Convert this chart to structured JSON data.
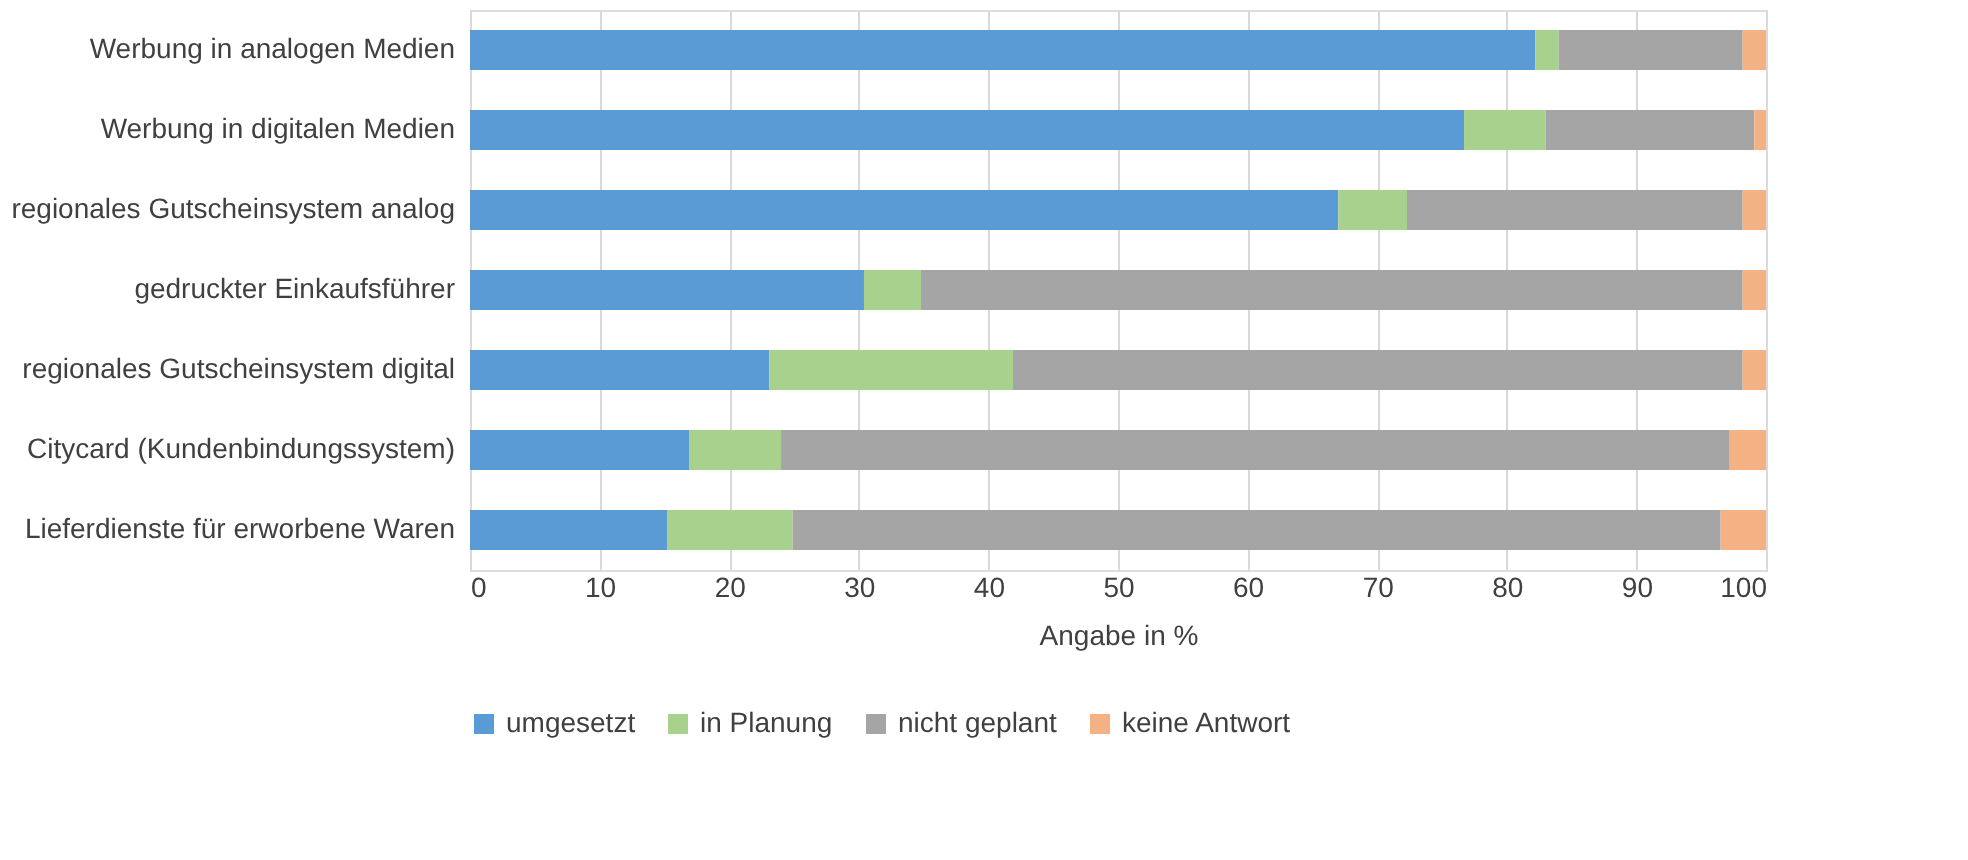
{
  "chart_data": {
    "type": "bar",
    "orientation": "horizontal",
    "stacked": true,
    "xlabel": "Angabe in %",
    "categories": [
      "Werbung in analogen Medien",
      "Werbung in digitalen Medien",
      "regionales Gutscheinsystem analog",
      "gedruckter Einkaufsführer",
      "regionales Gutscheinsystem digital",
      "Citycard (Kundenbindungssystem)",
      "Lieferdienste für erworbene Waren"
    ],
    "series": [
      {
        "name": "umgesetzt",
        "color": "#5b9bd5",
        "values": [
          82.2,
          76.7,
          67.0,
          30.4,
          23.1,
          16.9,
          15.2
        ]
      },
      {
        "name": "in Planung",
        "color": "#a9d18e",
        "values": [
          1.8,
          6.3,
          5.3,
          4.4,
          18.8,
          7.1,
          9.7
        ]
      },
      {
        "name": "nicht geplant",
        "color": "#a5a5a5",
        "values": [
          14.2,
          16.1,
          25.9,
          63.4,
          56.3,
          73.2,
          71.6
        ]
      },
      {
        "name": "keine Antwort",
        "color": "#f4b183",
        "values": [
          1.8,
          0.9,
          1.8,
          1.8,
          1.8,
          2.8,
          3.5
        ]
      }
    ],
    "xlim": [
      0,
      100
    ],
    "xticks": [
      0,
      10,
      20,
      30,
      40,
      50,
      60,
      70,
      80,
      90,
      100
    ],
    "grid": "x",
    "legend": "bottom"
  }
}
